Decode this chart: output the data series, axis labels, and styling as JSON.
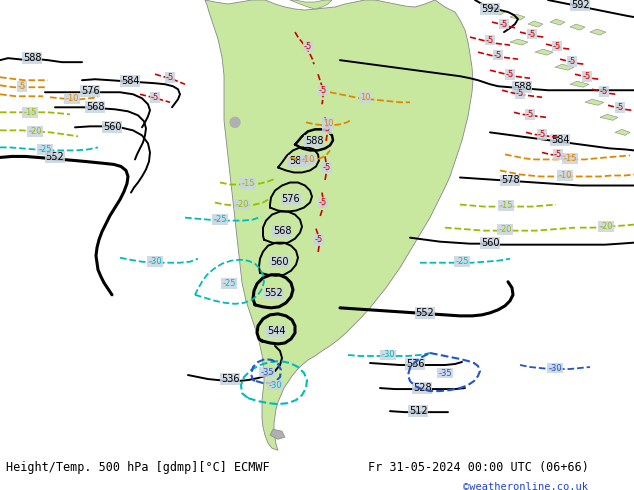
{
  "title_left": "Height/Temp. 500 hPa [gdmp][°C] ECMWF",
  "title_right": "Fr 31-05-2024 00:00 UTC (06+66)",
  "credit": "©weatheronline.co.uk",
  "bg_ocean": "#c8d4e0",
  "land_color": "#c8e8a0",
  "land_edge": "#888888",
  "height_color": "#000000",
  "rc": "#cc0000",
  "oc": "#dd8800",
  "gc": "#99bb00",
  "tc": "#00bbbb",
  "bc": "#2255cc",
  "footer_color": "#000000",
  "credit_color": "#2244cc",
  "font_size_footer": 9,
  "font_size_labels": 7
}
